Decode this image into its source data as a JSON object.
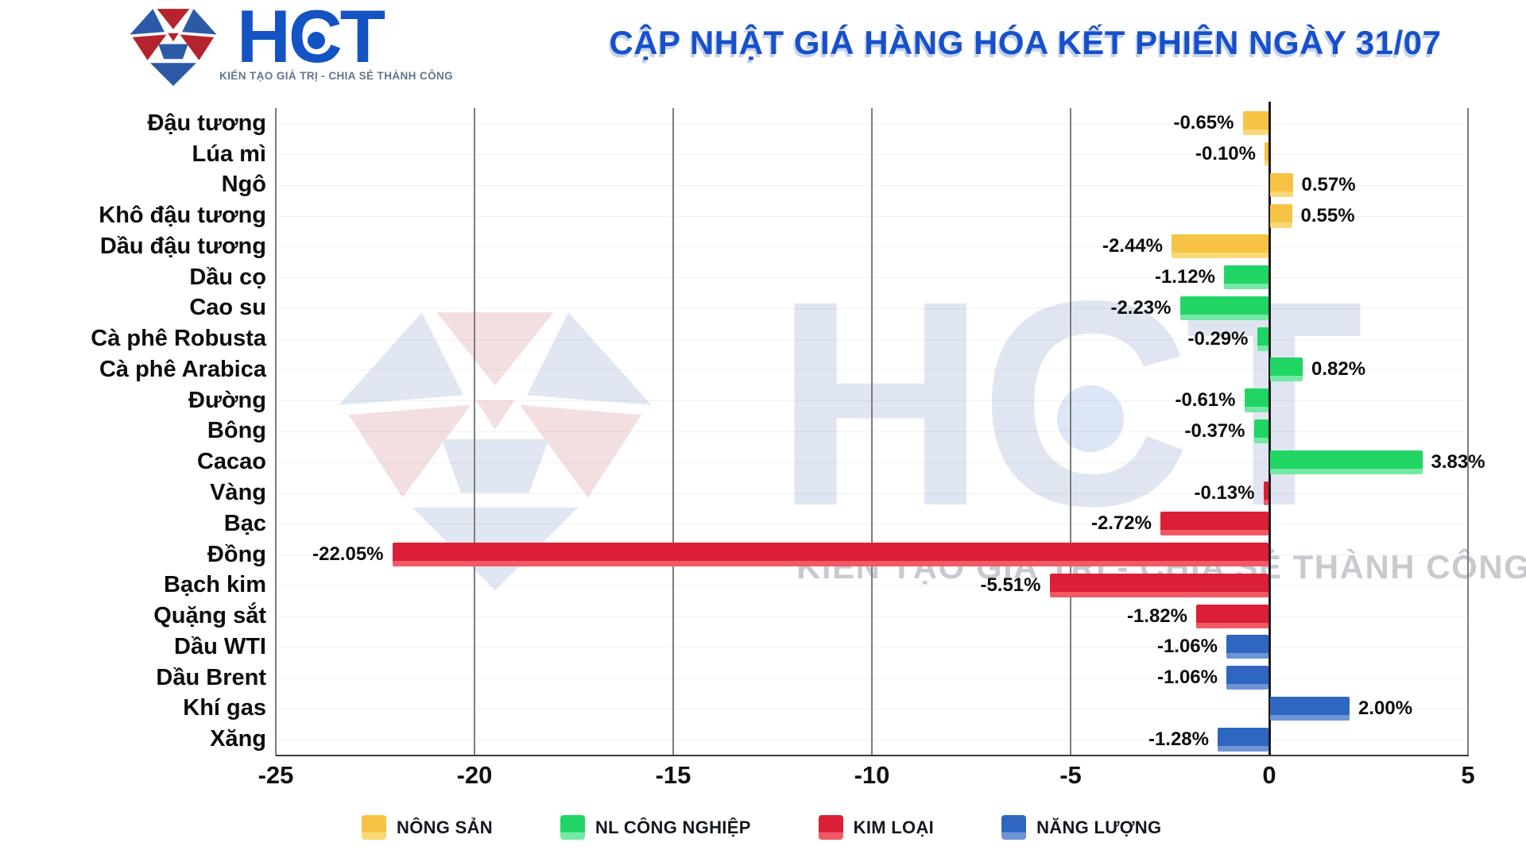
{
  "header": {
    "logo_text": "HCT",
    "logo_tagline": "KIẾN TẠO GIÁ TRỊ - CHIA SẺ THÀNH CÔNG",
    "title": "CẬP NHẬT GIÁ HÀNG HÓA KẾT PHIÊN NGÀY 31/07"
  },
  "watermark": {
    "text": "HCT",
    "tagline": "KIẾN TẠO GIÁ TRỊ - CHIA SẺ THÀNH CÔNG"
  },
  "chart_data": {
    "type": "bar",
    "orientation": "horizontal",
    "title": "CẬP NHẬT GIÁ HÀNG HÓA KẾT PHIÊN NGÀY 31/07",
    "xlabel": "",
    "ylabel": "",
    "xlim": [
      -25,
      5
    ],
    "x_ticks": [
      -25,
      -20,
      -15,
      -10,
      -5,
      0,
      5
    ],
    "x_tick_labels": [
      "-25",
      "-20",
      "-15",
      "-10",
      "-5",
      "0",
      "5"
    ],
    "grid": "vertical",
    "unit": "%",
    "categories": [
      "Đậu tương",
      "Lúa mì",
      "Ngô",
      "Khô đậu tương",
      "Dầu đậu tương",
      "Dầu cọ",
      "Cao su",
      "Cà phê Robusta",
      "Cà phê Arabica",
      "Đường",
      "Bông",
      "Cacao",
      "Vàng",
      "Bạc",
      "Đồng",
      "Bạch kim",
      "Quặng sắt",
      "Dầu WTI",
      "Dầu Brent",
      "Khí gas",
      "Xăng"
    ],
    "values": [
      -0.65,
      -0.1,
      0.57,
      0.55,
      -2.44,
      -1.12,
      -2.23,
      -0.29,
      0.82,
      -0.61,
      -0.37,
      3.83,
      -0.13,
      -2.72,
      -22.05,
      -5.51,
      -1.82,
      -1.06,
      -1.06,
      2.0,
      -1.28
    ],
    "value_labels": [
      "-0.65%",
      "-0.10%",
      "0.57%",
      "0.55%",
      "-2.44%",
      "-1.12%",
      "-2.23%",
      "-0.29%",
      "0.82%",
      "-0.61%",
      "-0.37%",
      "3.83%",
      "-0.13%",
      "-2.72%",
      "-22.05%",
      "-5.51%",
      "-1.82%",
      "-1.06%",
      "-1.06%",
      "2.00%",
      "-1.28%"
    ],
    "groups": [
      "nong_san",
      "nong_san",
      "nong_san",
      "nong_san",
      "nong_san",
      "nl_cong_nghiep",
      "nl_cong_nghiep",
      "nl_cong_nghiep",
      "nl_cong_nghiep",
      "nl_cong_nghiep",
      "nl_cong_nghiep",
      "nl_cong_nghiep",
      "kim_loai",
      "kim_loai",
      "kim_loai",
      "kim_loai",
      "kim_loai",
      "nang_luong",
      "nang_luong",
      "nang_luong",
      "nang_luong"
    ],
    "legend": [
      {
        "key": "nong_san",
        "label": "NÔNG SẢN",
        "color": "#F6C344",
        "light": "#FAD878"
      },
      {
        "key": "nl_cong_nghiep",
        "label": "NL CÔNG NGHIỆP",
        "color": "#21D565",
        "light": "#74E9A3"
      },
      {
        "key": "kim_loai",
        "label": "KIM LOẠI",
        "color": "#DC1E37",
        "light": "#EF5A66"
      },
      {
        "key": "nang_luong",
        "label": "NĂNG LƯỢNG",
        "color": "#2F66BF",
        "light": "#6E94D6"
      }
    ],
    "legend_position": "bottom"
  }
}
